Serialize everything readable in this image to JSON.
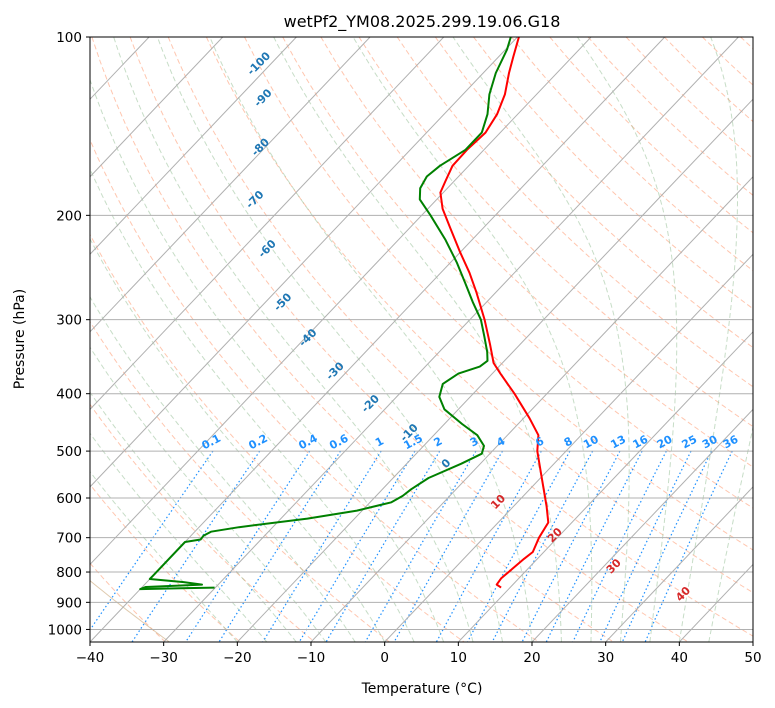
{
  "chart_data": {
    "type": "line",
    "subtype": "skew-T log-P diagram",
    "title": "wetPf2_YM08.2025.299.19.06.G18",
    "xlabel": "Temperature (°C)",
    "ylabel": "Pressure (hPa)",
    "xlim": [
      -40,
      50
    ],
    "ylim": [
      1050,
      100
    ],
    "y_scale": "log",
    "x_ticks": [
      -40,
      -30,
      -20,
      -10,
      0,
      10,
      20,
      30,
      40,
      50
    ],
    "x_tick_labels": [
      "−40",
      "−30",
      "−20",
      "−10",
      "0",
      "10",
      "20",
      "30",
      "40",
      "50"
    ],
    "y_ticks": [
      100,
      200,
      300,
      400,
      500,
      600,
      700,
      800,
      900,
      1000
    ],
    "y_tick_labels": [
      "100",
      "200",
      "300",
      "400",
      "500",
      "600",
      "700",
      "800",
      "900",
      "1000"
    ],
    "grid": true,
    "series": [
      {
        "color": "#ff0000",
        "points": [
          {
            "p": 850,
            "t": 8.8
          },
          {
            "p": 840,
            "t": 7.8
          },
          {
            "p": 820,
            "t": 7.6
          },
          {
            "p": 790,
            "t": 7.9
          },
          {
            "p": 760,
            "t": 8.2
          },
          {
            "p": 740,
            "t": 8.5
          },
          {
            "p": 700,
            "t": 7.5
          },
          {
            "p": 660,
            "t": 6.8
          },
          {
            "p": 620,
            "t": 4.5
          },
          {
            "p": 580,
            "t": 1.9
          },
          {
            "p": 540,
            "t": -0.9
          },
          {
            "p": 500,
            "t": -3.9
          },
          {
            "p": 470,
            "t": -5.8
          },
          {
            "p": 440,
            "t": -9.2
          },
          {
            "p": 400,
            "t": -14.4
          },
          {
            "p": 370,
            "t": -18.9
          },
          {
            "p": 355,
            "t": -21.2
          },
          {
            "p": 330,
            "t": -24.1
          },
          {
            "p": 300,
            "t": -28.0
          },
          {
            "p": 270,
            "t": -32.6
          },
          {
            "p": 250,
            "t": -36.1
          },
          {
            "p": 230,
            "t": -40.2
          },
          {
            "p": 210,
            "t": -44.5
          },
          {
            "p": 195,
            "t": -48.0
          },
          {
            "p": 183,
            "t": -50.4
          },
          {
            "p": 175,
            "t": -51.2
          },
          {
            "p": 165,
            "t": -52.2
          },
          {
            "p": 155,
            "t": -52.3
          },
          {
            "p": 145,
            "t": -52.0
          },
          {
            "p": 135,
            "t": -52.8
          },
          {
            "p": 125,
            "t": -54.3
          },
          {
            "p": 115,
            "t": -56.5
          },
          {
            "p": 108,
            "t": -58.0
          },
          {
            "p": 100,
            "t": -59.8
          }
        ]
      },
      {
        "color": "#008000",
        "points": [
          {
            "p": 850,
            "t": -30.1
          },
          {
            "p": 852,
            "t": -34.6
          },
          {
            "p": 855,
            "t": -40.0
          },
          {
            "p": 848,
            "t": -39.5
          },
          {
            "p": 840,
            "t": -32.2
          },
          {
            "p": 832,
            "t": -35.0
          },
          {
            "p": 822,
            "t": -40.0
          },
          {
            "p": 812,
            "t": -40.0
          },
          {
            "p": 712,
            "t": -40.0
          },
          {
            "p": 705,
            "t": -38.2
          },
          {
            "p": 695,
            "t": -38.3
          },
          {
            "p": 684,
            "t": -37.8
          },
          {
            "p": 672,
            "t": -34.6
          },
          {
            "p": 650,
            "t": -26.4
          },
          {
            "p": 630,
            "t": -20.7
          },
          {
            "p": 610,
            "t": -17.1
          },
          {
            "p": 595,
            "t": -16.4
          },
          {
            "p": 580,
            "t": -16.1
          },
          {
            "p": 555,
            "t": -15.2
          },
          {
            "p": 525,
            "t": -12.6
          },
          {
            "p": 505,
            "t": -11.1
          },
          {
            "p": 490,
            "t": -11.8
          },
          {
            "p": 470,
            "t": -14.1
          },
          {
            "p": 450,
            "t": -17.6
          },
          {
            "p": 425,
            "t": -21.9
          },
          {
            "p": 405,
            "t": -24.2
          },
          {
            "p": 385,
            "t": -25.4
          },
          {
            "p": 370,
            "t": -24.6
          },
          {
            "p": 360,
            "t": -22.6
          },
          {
            "p": 352,
            "t": -22.3
          },
          {
            "p": 340,
            "t": -23.5
          },
          {
            "p": 320,
            "t": -25.9
          },
          {
            "p": 300,
            "t": -28.5
          },
          {
            "p": 280,
            "t": -31.9
          },
          {
            "p": 260,
            "t": -35.4
          },
          {
            "p": 240,
            "t": -39.2
          },
          {
            "p": 220,
            "t": -43.6
          },
          {
            "p": 200,
            "t": -48.8
          },
          {
            "p": 188,
            "t": -52.3
          },
          {
            "p": 180,
            "t": -53.7
          },
          {
            "p": 172,
            "t": -54.3
          },
          {
            "p": 165,
            "t": -53.9
          },
          {
            "p": 155,
            "t": -52.5
          },
          {
            "p": 145,
            "t": -52.5
          },
          {
            "p": 135,
            "t": -54.1
          },
          {
            "p": 125,
            "t": -56.4
          },
          {
            "p": 115,
            "t": -58.3
          },
          {
            "p": 105,
            "t": -59.8
          },
          {
            "p": 100,
            "t": -60.9
          }
        ]
      }
    ],
    "mixing_ratio_lines": {
      "style": "dotted",
      "color": "#1e90ff",
      "values": [
        0.1,
        0.2,
        0.4,
        0.6,
        1,
        1.5,
        2,
        3,
        4,
        6,
        8,
        10,
        13,
        16,
        20,
        25,
        30,
        36
      ],
      "labels": [
        "0.1",
        "0.2",
        "0.4",
        "0.6",
        "1",
        "1.5",
        "2",
        "3",
        "4",
        "6",
        "8",
        "10",
        "13",
        "16",
        "20",
        "25",
        "30",
        "36"
      ]
    },
    "dry_adiabat_labels": {
      "color": "#1f77b4",
      "items": [
        {
          "label": "-100",
          "p": 112,
          "t": -91
        },
        {
          "label": "-90",
          "p": 128,
          "t": -86
        },
        {
          "label": "-80",
          "p": 155,
          "t": -80
        },
        {
          "label": "-70",
          "p": 190,
          "t": -74
        },
        {
          "label": "-60",
          "p": 230,
          "t": -66
        },
        {
          "label": "-50",
          "p": 283,
          "t": -57
        },
        {
          "label": "-40",
          "p": 325,
          "t": -49
        },
        {
          "label": "-30",
          "p": 370,
          "t": -41
        },
        {
          "label": "-20",
          "p": 420,
          "t": -32
        },
        {
          "label": "-10",
          "p": 470,
          "t": -23
        },
        {
          "label": "0",
          "p": 530,
          "t": -14
        }
      ]
    },
    "moist_adiabat_labels": {
      "color": "#d62728",
      "items": [
        {
          "label": "10",
          "p": 615,
          "t": -2
        },
        {
          "label": "20",
          "p": 700,
          "t": 10
        },
        {
          "label": "30",
          "p": 790,
          "t": 22
        },
        {
          "label": "40",
          "p": 880,
          "t": 35
        }
      ]
    },
    "background_colors": {
      "isotherms_and_isobars": "#b0b0b0",
      "dry_adiabats": "#ffa07a",
      "moist_adiabats": "#8fbc8f",
      "bounding_curves": "#d2b48c"
    }
  }
}
